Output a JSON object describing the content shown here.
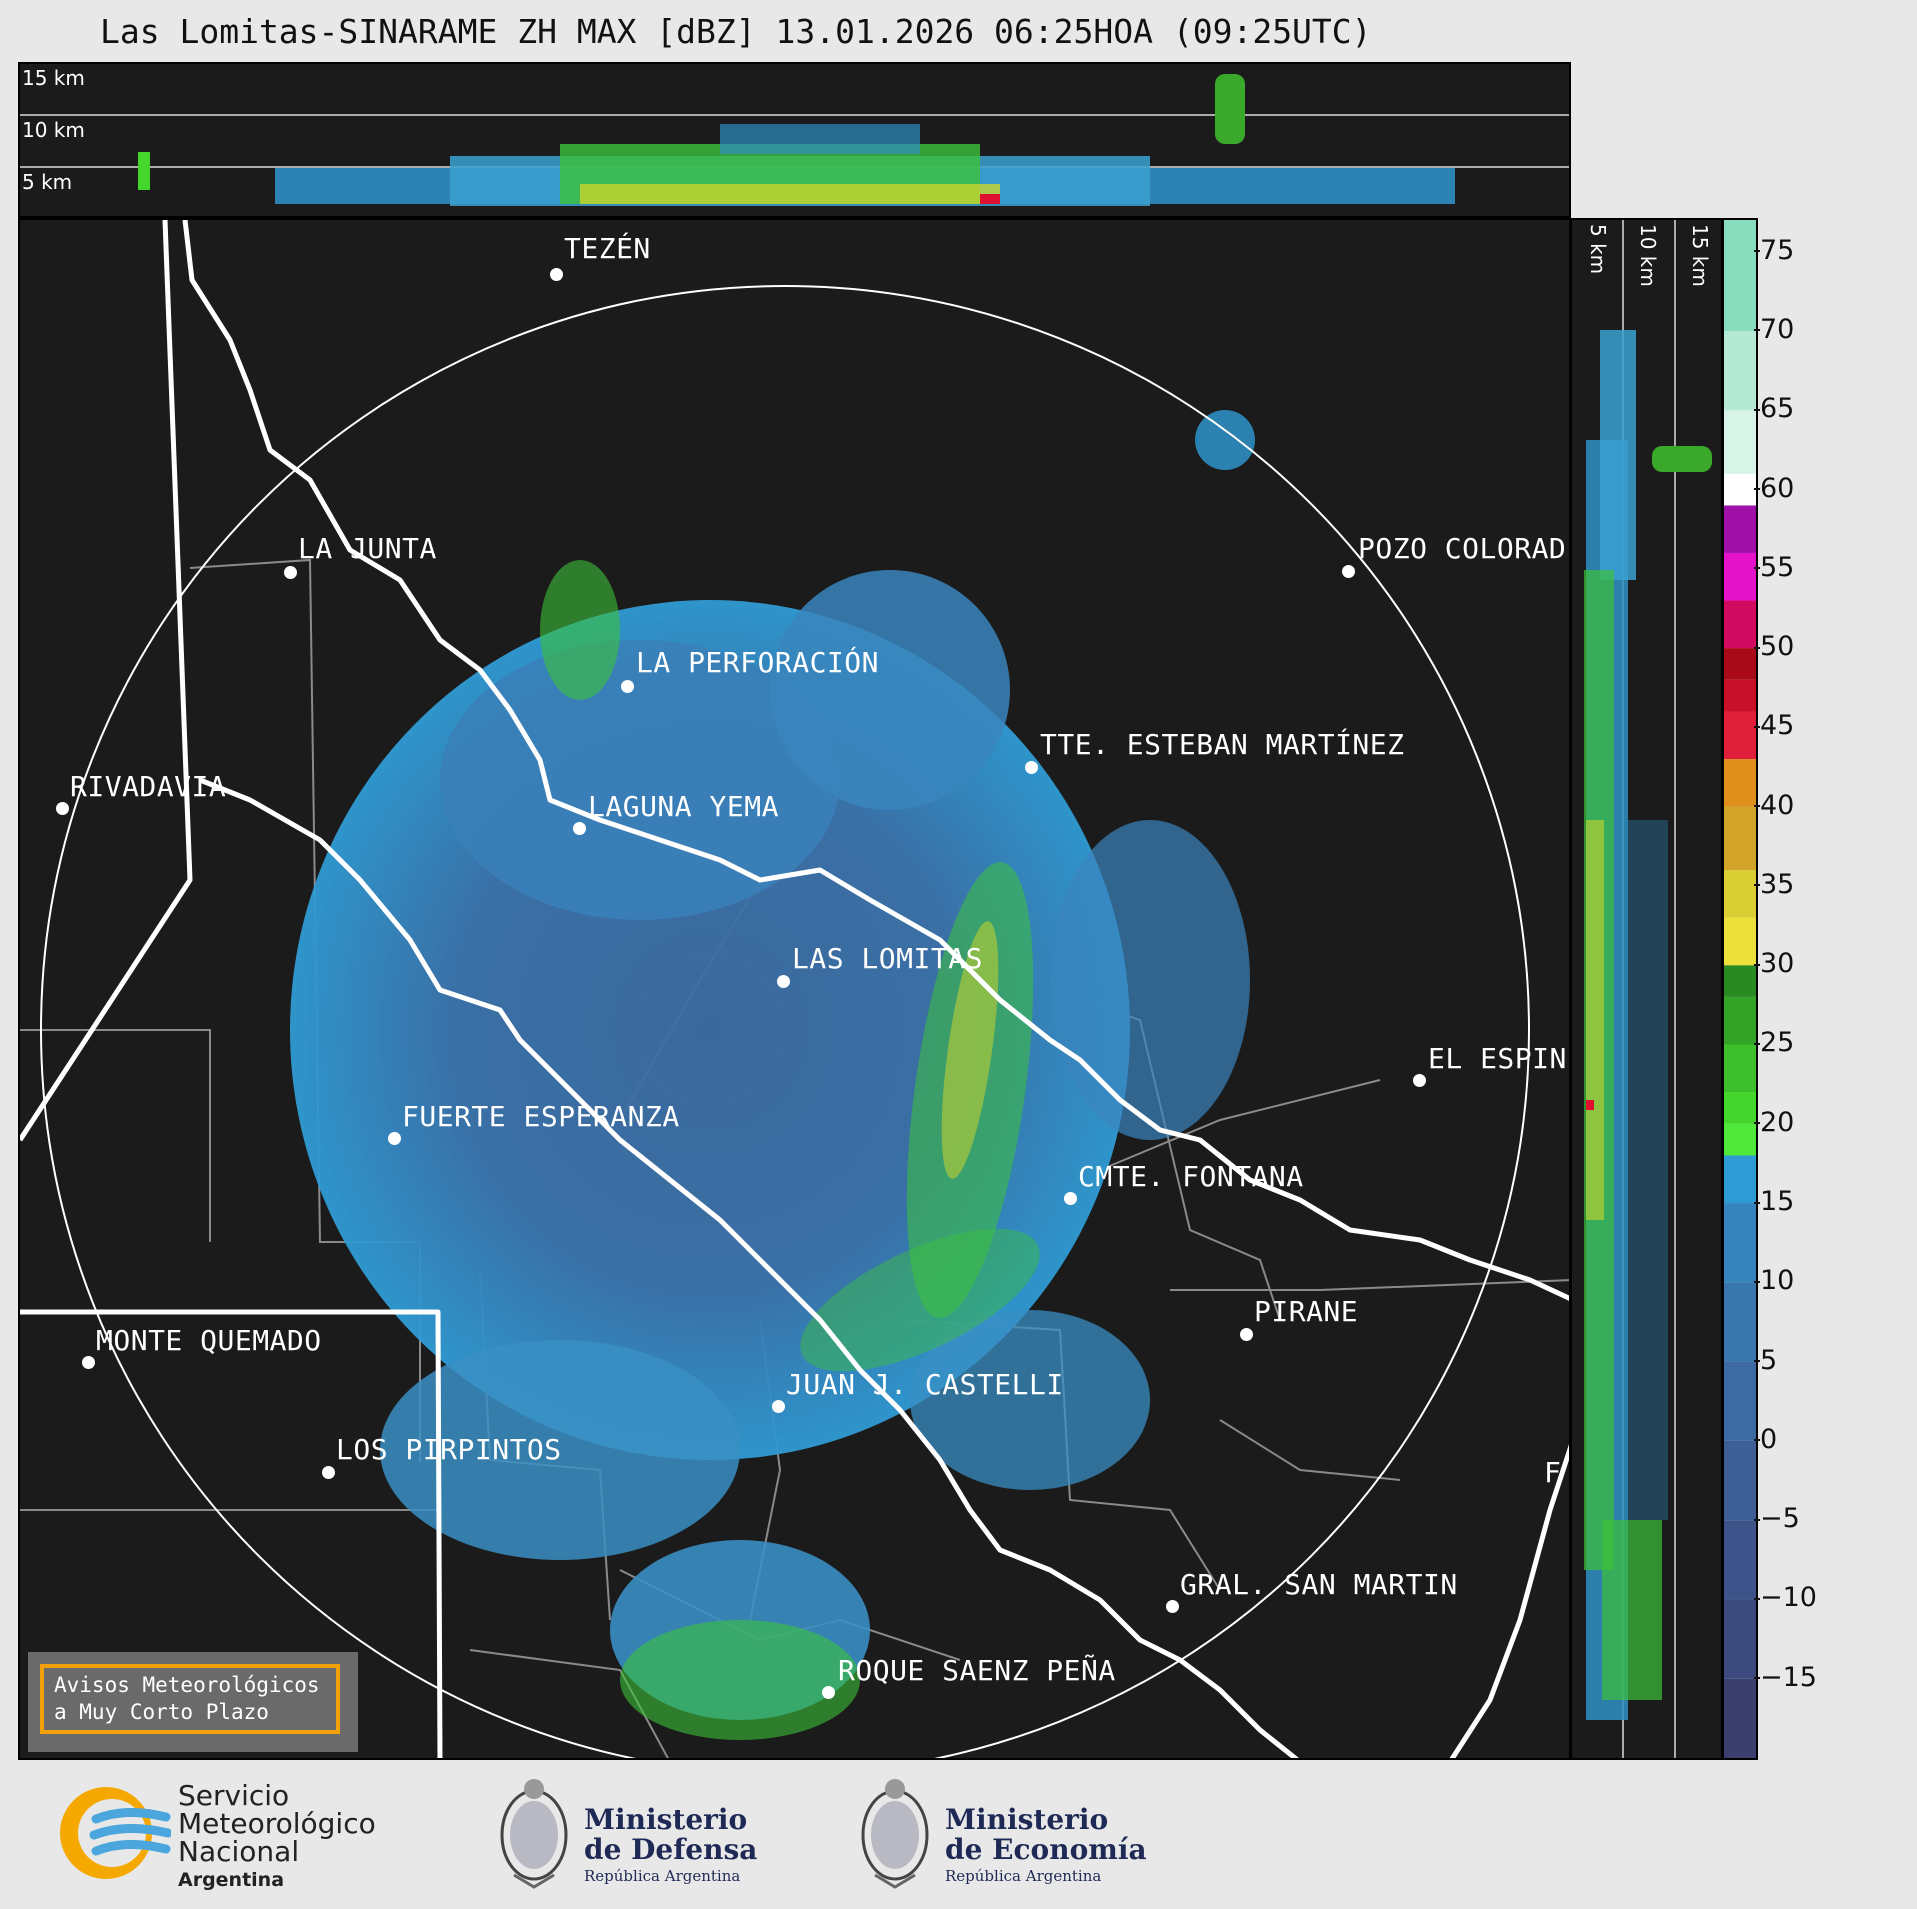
{
  "title": "Las Lomitas-SINARAME ZH MAX [dBZ] 13.01.2026 06:25HOA (09:25UTC)",
  "height_labels": [
    "15 km",
    "10 km",
    "5 km"
  ],
  "cities": [
    {
      "name": "TEZÉN"
    },
    {
      "name": "LA JUNTA"
    },
    {
      "name": "POZO COLORAD"
    },
    {
      "name": "LA PERFORACIÓN"
    },
    {
      "name": "TTE. ESTEBAN MARTÍNEZ"
    },
    {
      "name": "RIVADAVIA"
    },
    {
      "name": "LAGUNA YEMA"
    },
    {
      "name": "LAS LOMITAS"
    },
    {
      "name": "EL ESPIN"
    },
    {
      "name": "FUERTE ESPERANZA"
    },
    {
      "name": "CMTE. FONTANA"
    },
    {
      "name": "PIRANE"
    },
    {
      "name": "MONTE QUEMADO"
    },
    {
      "name": "JUAN J. CASTELLI"
    },
    {
      "name": "LOS PIRPINTOS"
    },
    {
      "name": "F"
    },
    {
      "name": "GRAL. SAN MARTIN"
    },
    {
      "name": "ROQUE SAENZ PEÑA"
    }
  ],
  "colorbar": {
    "ticks": [
      "75",
      "70",
      "65",
      "60",
      "55",
      "50",
      "45",
      "40",
      "35",
      "30",
      "25",
      "20",
      "15",
      "10",
      "5",
      "0",
      "−5",
      "−10",
      "−15"
    ],
    "min": -20,
    "max": 77
  },
  "warning_box": {
    "line1": "Avisos Meteorológicos",
    "line2": "a Muy Corto Plazo"
  },
  "logos": {
    "smn": {
      "line1": "Servicio",
      "line2": "Meteorológico",
      "line3": "Nacional",
      "line4": "Argentina"
    },
    "defensa": {
      "line1": "Ministerio",
      "line2": "de Defensa",
      "line3": "República Argentina"
    },
    "economia": {
      "line1": "Ministerio",
      "line2": "de Economía",
      "line3": "República Argentina"
    }
  },
  "colors": {
    "panel_bg": "#1b1b1b",
    "echo_base": "#3a6fa8",
    "echo_light": "#2f9bd4",
    "echo_green": "#44d62c",
    "warning_border": "#f2a00c"
  }
}
